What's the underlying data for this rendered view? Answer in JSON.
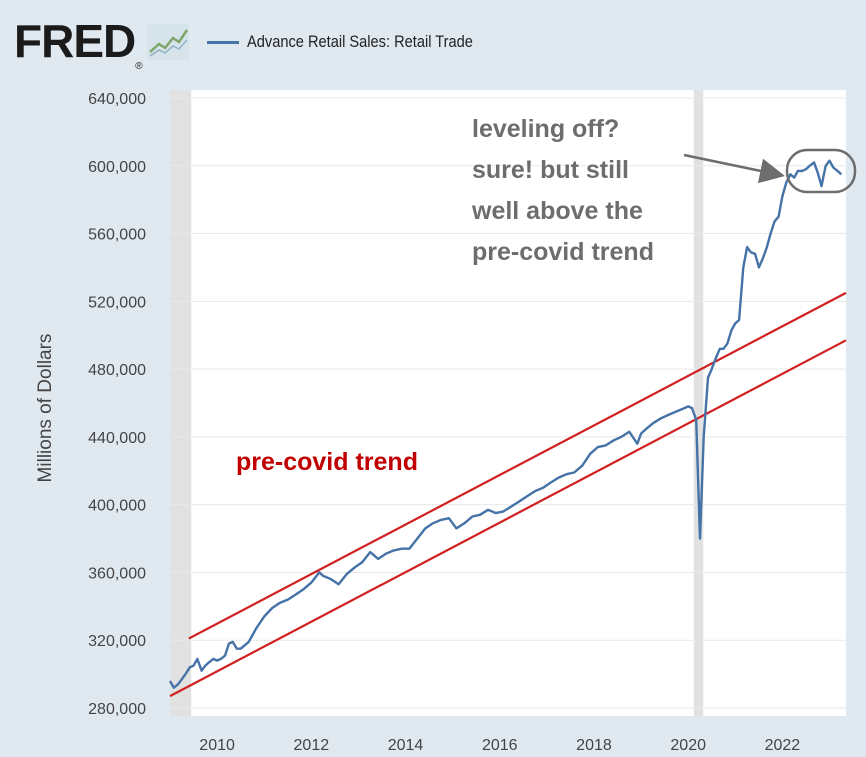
{
  "header": {
    "logo_text": "FRED",
    "logo_mark": "®",
    "logo_icon": "fred-line-graph-icon"
  },
  "colors": {
    "series": "#4572a7",
    "trend": "#d12020",
    "annotation": "#6d6d6d",
    "trend_label": "#c00000",
    "recession": "#e1e1e1",
    "plot_background": "#ffffff",
    "page_background": "#e1e9f0"
  },
  "chart_data": {
    "type": "line",
    "title": "",
    "xlabel": "",
    "ylabel": "Millions of Dollars",
    "xlim": [
      2009.0,
      2023.35
    ],
    "ylim": [
      280000,
      640000
    ],
    "y_ticks": [
      280000,
      320000,
      360000,
      400000,
      440000,
      480000,
      520000,
      560000,
      600000,
      640000
    ],
    "y_tick_labels": [
      "280,000",
      "320,000",
      "360,000",
      "400,000",
      "440,000",
      "480,000",
      "520,000",
      "560,000",
      "600,000",
      "640,000"
    ],
    "x_ticks": [
      2010,
      2012,
      2014,
      2016,
      2018,
      2020,
      2022
    ],
    "x_tick_labels": [
      "2010",
      "2012",
      "2014",
      "2016",
      "2018",
      "2020",
      "2022"
    ],
    "grid": "horizontal",
    "legend_position": "top-left",
    "recession_bands": [
      [
        2009.0,
        2009.45
      ],
      [
        2020.12,
        2020.32
      ]
    ],
    "series": [
      {
        "name": "Advance Retail Sales: Retail Trade",
        "x": [
          2009.0,
          2009.08,
          2009.17,
          2009.25,
          2009.33,
          2009.42,
          2009.5,
          2009.58,
          2009.67,
          2009.75,
          2009.83,
          2009.92,
          2010.0,
          2010.08,
          2010.17,
          2010.25,
          2010.33,
          2010.42,
          2010.5,
          2010.67,
          2010.83,
          2011.0,
          2011.17,
          2011.33,
          2011.5,
          2011.67,
          2011.83,
          2012.0,
          2012.17,
          2012.25,
          2012.42,
          2012.58,
          2012.75,
          2012.92,
          2013.08,
          2013.25,
          2013.42,
          2013.58,
          2013.75,
          2013.92,
          2014.08,
          2014.25,
          2014.42,
          2014.58,
          2014.75,
          2014.92,
          2015.08,
          2015.25,
          2015.42,
          2015.58,
          2015.75,
          2015.92,
          2016.08,
          2016.25,
          2016.42,
          2016.58,
          2016.75,
          2016.92,
          2017.08,
          2017.25,
          2017.42,
          2017.58,
          2017.75,
          2017.92,
          2018.08,
          2018.25,
          2018.42,
          2018.58,
          2018.75,
          2018.92,
          2019.0,
          2019.08,
          2019.25,
          2019.42,
          2019.58,
          2019.75,
          2019.92,
          2020.0,
          2020.08,
          2020.17,
          2020.25,
          2020.33,
          2020.42,
          2020.5,
          2020.58,
          2020.67,
          2020.75,
          2020.83,
          2020.92,
          2021.0,
          2021.08,
          2021.17,
          2021.25,
          2021.33,
          2021.42,
          2021.5,
          2021.58,
          2021.67,
          2021.75,
          2021.83,
          2021.92,
          2022.0,
          2022.08,
          2022.17,
          2022.25,
          2022.33,
          2022.42,
          2022.5,
          2022.58,
          2022.67,
          2022.75,
          2022.83,
          2022.92,
          2023.0,
          2023.08,
          2023.17,
          2023.25
        ],
        "y": [
          296000,
          292000,
          294000,
          297000,
          300000,
          304000,
          305000,
          309000,
          302000,
          305000,
          307000,
          309000,
          308000,
          309000,
          311000,
          318000,
          319000,
          315000,
          315000,
          319000,
          327000,
          334000,
          339000,
          342000,
          344000,
          347000,
          350000,
          354000,
          360000,
          358000,
          356000,
          353000,
          359000,
          363000,
          366000,
          372000,
          368000,
          371000,
          373000,
          374000,
          374000,
          380000,
          386000,
          389000,
          391000,
          392000,
          386000,
          389000,
          393000,
          394000,
          397000,
          395000,
          396000,
          399000,
          402000,
          405000,
          408000,
          410000,
          413000,
          416000,
          418000,
          419000,
          423000,
          430000,
          434000,
          435000,
          438000,
          440000,
          443000,
          436000,
          442000,
          444000,
          448000,
          451000,
          453000,
          455000,
          457000,
          458000,
          457000,
          450000,
          380000,
          440000,
          475000,
          480000,
          486000,
          492000,
          492000,
          495000,
          503000,
          507000,
          509000,
          540000,
          552000,
          549000,
          548000,
          540000,
          545000,
          552000,
          560000,
          567000,
          570000,
          582000,
          590000,
          595000,
          593000,
          597000,
          597000,
          598000,
          600000,
          602000,
          596000,
          588000,
          600000,
          603000,
          599000,
          597000,
          595000
        ]
      }
    ],
    "trend_lines": [
      {
        "x": [
          2009.4,
          2023.35
        ],
        "y": [
          321000,
          525000
        ]
      },
      {
        "x": [
          2009.0,
          2023.35
        ],
        "y": [
          287000,
          497000
        ]
      }
    ],
    "annotations": [
      {
        "text_lines": [
          "leveling off?",
          "sure!  but still",
          "well above the",
          "pre-covid trend"
        ]
      },
      {
        "text": "pre-covid trend"
      }
    ]
  }
}
